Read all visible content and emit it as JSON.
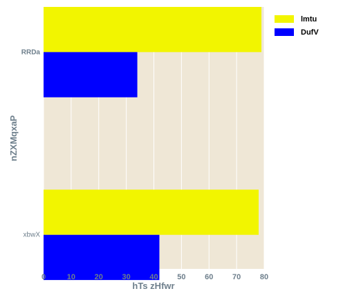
{
  "chart_data": {
    "type": "bar",
    "orientation": "horizontal",
    "categories": [
      "RRDa",
      "xbwX"
    ],
    "series": [
      {
        "name": "lmtu",
        "values": [
          79,
          78
        ],
        "color": "#f2f500"
      },
      {
        "name": "DufV",
        "values": [
          34,
          42
        ],
        "color": "#0000ff"
      }
    ],
    "xlabel": "hTs zHfwr",
    "ylabel": "nZXMqxaP",
    "xlim": [
      0,
      80
    ],
    "xticks": [
      "0",
      "10",
      "20",
      "30",
      "40",
      "50",
      "60",
      "70",
      "80"
    ],
    "grid": true,
    "legend_position": "top-right",
    "background_color": "#efe7d6",
    "grid_color": "#ffffff",
    "text_color": "#6e7f8c"
  }
}
